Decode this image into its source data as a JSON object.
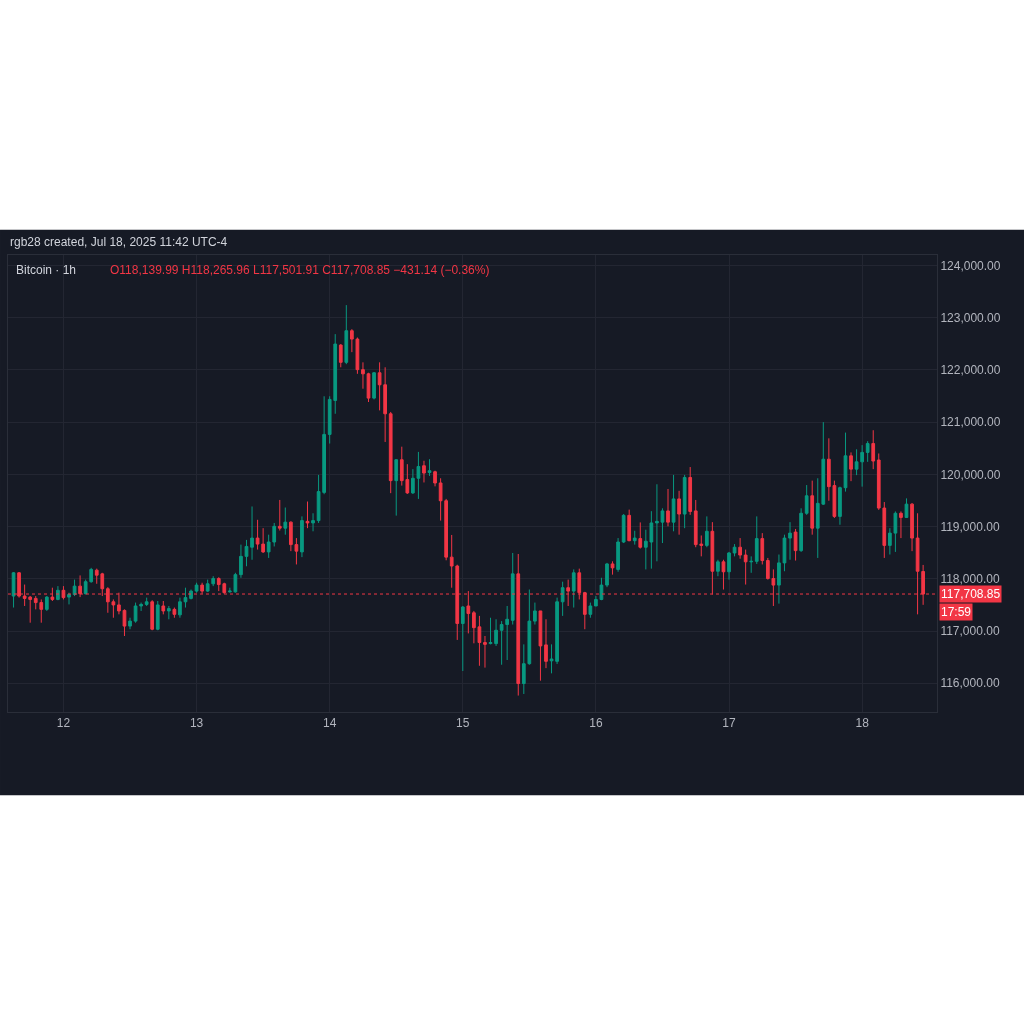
{
  "chart_data": {
    "type": "candlestick",
    "title": "rgb28 created, Jul 18, 2025 11:42 UTC-4",
    "subtitle": "Bitcoin · 1h",
    "annotations": [
      "O118,139.99 H118,265.96 L117,501.91 C117,708.85 −431.14 (−0.36%)",
      "17:59"
    ],
    "x": [
      "2025-07-11T15:00",
      "2025-07-11T16:00",
      "2025-07-11T17:00",
      "2025-07-11T18:00",
      "2025-07-11T19:00",
      "2025-07-11T20:00",
      "2025-07-11T21:00",
      "2025-07-11T22:00",
      "2025-07-11T23:00",
      "2025-07-12T00:00",
      "2025-07-12T01:00",
      "2025-07-12T02:00",
      "2025-07-12T03:00",
      "2025-07-12T04:00",
      "2025-07-12T05:00",
      "2025-07-12T06:00",
      "2025-07-12T07:00",
      "2025-07-12T08:00",
      "2025-07-12T09:00",
      "2025-07-12T10:00",
      "2025-07-12T11:00",
      "2025-07-12T12:00",
      "2025-07-12T13:00",
      "2025-07-12T14:00",
      "2025-07-12T15:00",
      "2025-07-12T16:00",
      "2025-07-12T17:00",
      "2025-07-12T18:00",
      "2025-07-12T19:00",
      "2025-07-12T20:00",
      "2025-07-12T21:00",
      "2025-07-12T22:00",
      "2025-07-12T23:00",
      "2025-07-13T00:00",
      "2025-07-13T01:00",
      "2025-07-13T02:00",
      "2025-07-13T03:00",
      "2025-07-13T04:00",
      "2025-07-13T05:00",
      "2025-07-13T06:00",
      "2025-07-13T07:00",
      "2025-07-13T08:00",
      "2025-07-13T09:00",
      "2025-07-13T10:00",
      "2025-07-13T11:00",
      "2025-07-13T12:00",
      "2025-07-13T13:00",
      "2025-07-13T14:00",
      "2025-07-13T15:00",
      "2025-07-13T16:00",
      "2025-07-13T17:00",
      "2025-07-13T18:00",
      "2025-07-13T19:00",
      "2025-07-13T20:00",
      "2025-07-13T21:00",
      "2025-07-13T22:00",
      "2025-07-13T23:00",
      "2025-07-14T00:00",
      "2025-07-14T01:00",
      "2025-07-14T02:00",
      "2025-07-14T03:00",
      "2025-07-14T04:00",
      "2025-07-14T05:00",
      "2025-07-14T06:00",
      "2025-07-14T07:00",
      "2025-07-14T08:00",
      "2025-07-14T09:00",
      "2025-07-14T10:00",
      "2025-07-14T11:00",
      "2025-07-14T12:00",
      "2025-07-14T13:00",
      "2025-07-14T14:00",
      "2025-07-14T15:00",
      "2025-07-14T16:00",
      "2025-07-14T17:00",
      "2025-07-14T18:00",
      "2025-07-14T19:00",
      "2025-07-14T20:00",
      "2025-07-14T21:00",
      "2025-07-14T22:00",
      "2025-07-14T23:00",
      "2025-07-15T00:00",
      "2025-07-15T01:00",
      "2025-07-15T02:00",
      "2025-07-15T03:00",
      "2025-07-15T04:00",
      "2025-07-15T05:00",
      "2025-07-15T06:00",
      "2025-07-15T07:00",
      "2025-07-15T08:00",
      "2025-07-15T09:00",
      "2025-07-15T10:00",
      "2025-07-15T11:00",
      "2025-07-15T12:00",
      "2025-07-15T13:00",
      "2025-07-15T14:00",
      "2025-07-15T15:00",
      "2025-07-15T16:00",
      "2025-07-15T17:00",
      "2025-07-15T18:00",
      "2025-07-15T19:00",
      "2025-07-15T20:00",
      "2025-07-15T21:00",
      "2025-07-15T22:00",
      "2025-07-15T23:00",
      "2025-07-16T00:00",
      "2025-07-16T01:00",
      "2025-07-16T02:00",
      "2025-07-16T03:00",
      "2025-07-16T04:00",
      "2025-07-16T05:00",
      "2025-07-16T06:00",
      "2025-07-16T07:00",
      "2025-07-16T08:00",
      "2025-07-16T09:00",
      "2025-07-16T10:00",
      "2025-07-16T11:00",
      "2025-07-16T12:00",
      "2025-07-16T13:00",
      "2025-07-16T14:00",
      "2025-07-16T15:00",
      "2025-07-16T16:00",
      "2025-07-16T17:00",
      "2025-07-16T18:00",
      "2025-07-16T19:00",
      "2025-07-16T20:00",
      "2025-07-16T21:00",
      "2025-07-16T22:00",
      "2025-07-16T23:00",
      "2025-07-17T00:00",
      "2025-07-17T01:00",
      "2025-07-17T02:00",
      "2025-07-17T03:00",
      "2025-07-17T04:00",
      "2025-07-17T05:00",
      "2025-07-17T06:00",
      "2025-07-17T07:00",
      "2025-07-17T08:00",
      "2025-07-17T09:00",
      "2025-07-17T10:00",
      "2025-07-17T11:00",
      "2025-07-17T12:00",
      "2025-07-17T13:00",
      "2025-07-17T14:00",
      "2025-07-17T15:00",
      "2025-07-17T16:00",
      "2025-07-17T17:00",
      "2025-07-17T18:00",
      "2025-07-17T19:00",
      "2025-07-17T20:00",
      "2025-07-17T21:00",
      "2025-07-17T22:00",
      "2025-07-17T23:00",
      "2025-07-18T00:00",
      "2025-07-18T01:00",
      "2025-07-18T02:00",
      "2025-07-18T03:00",
      "2025-07-18T04:00",
      "2025-07-18T05:00",
      "2025-07-18T06:00",
      "2025-07-18T07:00",
      "2025-07-18T08:00",
      "2025-07-18T09:00",
      "2025-07-18T10:00",
      "2025-07-18T11:00"
    ],
    "ohlc": [
      [
        117670,
        118130,
        117450,
        118115
      ],
      [
        118115,
        118130,
        117640,
        117670
      ],
      [
        117670,
        117890,
        117480,
        117625
      ],
      [
        117650,
        117670,
        117160,
        117605
      ],
      [
        117625,
        117670,
        117415,
        117545
      ],
      [
        117545,
        117605,
        117160,
        117415
      ],
      [
        117415,
        117670,
        117385,
        117650
      ],
      [
        117650,
        117830,
        117575,
        117605
      ],
      [
        117605,
        117860,
        117590,
        117780
      ],
      [
        117780,
        117860,
        117605,
        117640
      ],
      [
        117650,
        117735,
        117510,
        117700
      ],
      [
        117700,
        117985,
        117670,
        117860
      ],
      [
        117860,
        118065,
        117650,
        117715
      ],
      [
        117715,
        117985,
        117700,
        117945
      ],
      [
        117945,
        118210,
        117925,
        118180
      ],
      [
        118165,
        118195,
        117905,
        118070
      ],
      [
        118095,
        118115,
        117670,
        117810
      ],
      [
        117810,
        117840,
        117350,
        117560
      ],
      [
        117560,
        117605,
        117255,
        117500
      ],
      [
        117500,
        117735,
        117320,
        117385
      ],
      [
        117395,
        117415,
        116905,
        117095
      ],
      [
        117095,
        117255,
        117035,
        117190
      ],
      [
        117190,
        117545,
        117160,
        117480
      ],
      [
        117480,
        117545,
        117385,
        117510
      ],
      [
        117510,
        117640,
        117480,
        117560
      ],
      [
        117560,
        117590,
        117015,
        117035
      ],
      [
        117035,
        117575,
        117015,
        117500
      ],
      [
        117480,
        117575,
        117320,
        117385
      ],
      [
        117385,
        117480,
        117225,
        117430
      ],
      [
        117415,
        117450,
        117255,
        117320
      ],
      [
        117310,
        117640,
        117255,
        117560
      ],
      [
        117560,
        117830,
        117450,
        117640
      ],
      [
        117625,
        117795,
        117605,
        117765
      ],
      [
        117765,
        117925,
        117735,
        117880
      ],
      [
        117880,
        117925,
        117715,
        117765
      ],
      [
        117765,
        117985,
        117750,
        117905
      ],
      [
        117905,
        118050,
        117860,
        118005
      ],
      [
        118005,
        118030,
        117765,
        117890
      ],
      [
        117905,
        117925,
        117715,
        117735
      ],
      [
        117750,
        117830,
        117735,
        117765
      ],
      [
        117750,
        118115,
        117735,
        118080
      ],
      [
        118080,
        118655,
        118020,
        118430
      ],
      [
        118430,
        118745,
        118240,
        118620
      ],
      [
        118605,
        119385,
        118365,
        118780
      ],
      [
        118780,
        119130,
        118560,
        118665
      ],
      [
        118665,
        118970,
        118495,
        118515
      ],
      [
        118515,
        118845,
        118400,
        118705
      ],
      [
        118705,
        119070,
        118620,
        119005
      ],
      [
        119005,
        119510,
        118925,
        118970
      ],
      [
        118970,
        119365,
        118845,
        119085
      ],
      [
        119085,
        119100,
        118530,
        118655
      ],
      [
        118655,
        118780,
        118275,
        118530
      ],
      [
        118515,
        119195,
        118415,
        119115
      ],
      [
        119100,
        119480,
        118970,
        119070
      ],
      [
        119070,
        119255,
        118910,
        119115
      ],
      [
        119115,
        119990,
        119070,
        119670
      ],
      [
        119655,
        121495,
        119620,
        120765
      ],
      [
        120765,
        121495,
        120590,
        121435
      ],
      [
        121415,
        122685,
        121160,
        122495
      ],
      [
        122475,
        122495,
        122050,
        122145
      ],
      [
        122145,
        123240,
        122110,
        122750
      ],
      [
        122750,
        122780,
        122340,
        122590
      ],
      [
        122590,
        122620,
        121925,
        122005
      ],
      [
        122005,
        122145,
        121640,
        121925
      ],
      [
        121925,
        121945,
        121385,
        121460
      ],
      [
        121460,
        121960,
        121435,
        121945
      ],
      [
        121945,
        122145,
        121225,
        121715
      ],
      [
        121715,
        122050,
        120620,
        121160
      ],
      [
        121160,
        121195,
        119640,
        119880
      ],
      [
        119880,
        120290,
        119210,
        120280
      ],
      [
        120280,
        120530,
        119785,
        119880
      ],
      [
        119900,
        120195,
        119625,
        119645
      ],
      [
        119645,
        120100,
        119625,
        119925
      ],
      [
        119925,
        120430,
        119530,
        120150
      ],
      [
        120165,
        120260,
        119845,
        120025
      ],
      [
        120035,
        120290,
        119970,
        120070
      ],
      [
        120050,
        120070,
        119770,
        119835
      ],
      [
        119835,
        119925,
        119115,
        119495
      ],
      [
        119495,
        119530,
        118355,
        118415
      ],
      [
        118415,
        118840,
        117830,
        118245
      ],
      [
        118245,
        118270,
        116830,
        117145
      ],
      [
        117145,
        117480,
        116235,
        117460
      ],
      [
        117480,
        117765,
        116955,
        117335
      ],
      [
        117350,
        117385,
        116765,
        117065
      ],
      [
        117080,
        117290,
        116335,
        116780
      ],
      [
        116780,
        116905,
        116300,
        116745
      ],
      [
        116760,
        117255,
        116745,
        116780
      ],
      [
        116760,
        117225,
        116715,
        117015
      ],
      [
        117015,
        117190,
        116355,
        117125
      ],
      [
        117125,
        117480,
        116445,
        117225
      ],
      [
        117205,
        118495,
        117125,
        118095
      ],
      [
        118095,
        118475,
        115765,
        115995
      ],
      [
        115995,
        116745,
        115795,
        116375
      ],
      [
        116375,
        117795,
        116355,
        117190
      ],
      [
        117190,
        117545,
        117125,
        117385
      ],
      [
        117385,
        117385,
        116050,
        116715
      ],
      [
        116735,
        117225,
        116290,
        116420
      ],
      [
        116430,
        116745,
        116190,
        116465
      ],
      [
        116420,
        117640,
        116370,
        117560
      ],
      [
        117560,
        117945,
        117290,
        117830
      ],
      [
        117830,
        117985,
        117480,
        117765
      ],
      [
        117765,
        118180,
        117450,
        118115
      ],
      [
        118115,
        118195,
        117605,
        117735
      ],
      [
        117735,
        117750,
        117035,
        117320
      ],
      [
        117320,
        117545,
        117255,
        117480
      ],
      [
        117480,
        117670,
        117480,
        117605
      ],
      [
        117605,
        118020,
        117590,
        117880
      ],
      [
        117880,
        118305,
        117840,
        118285
      ],
      [
        118285,
        118335,
        118080,
        118210
      ],
      [
        118180,
        118780,
        118135,
        118705
      ],
      [
        118705,
        119240,
        118685,
        119215
      ],
      [
        119215,
        119325,
        118720,
        118730
      ],
      [
        118730,
        118920,
        118655,
        118780
      ],
      [
        118770,
        119080,
        118580,
        118605
      ],
      [
        118605,
        118940,
        118180,
        118720
      ],
      [
        118705,
        119295,
        118195,
        119070
      ],
      [
        119070,
        119810,
        118335,
        119100
      ],
      [
        119085,
        119350,
        118685,
        119300
      ],
      [
        119300,
        119720,
        119005,
        119085
      ],
      [
        119085,
        119990,
        118910,
        119530
      ],
      [
        119530,
        119685,
        118845,
        119240
      ],
      [
        119240,
        119990,
        118970,
        119940
      ],
      [
        119940,
        120140,
        119225,
        119290
      ],
      [
        119300,
        119510,
        118605,
        118655
      ],
      [
        118665,
        118830,
        118430,
        118640
      ],
      [
        118640,
        119195,
        118605,
        118910
      ],
      [
        118910,
        119085,
        117700,
        118145
      ],
      [
        118145,
        118365,
        118050,
        118325
      ],
      [
        118325,
        118365,
        117795,
        118135
      ],
      [
        118135,
        118515,
        117985,
        118495
      ],
      [
        118495,
        118665,
        118430,
        118605
      ],
      [
        118605,
        118780,
        118385,
        118455
      ],
      [
        118455,
        118560,
        117890,
        118325
      ],
      [
        118325,
        118430,
        118115,
        118335
      ],
      [
        118335,
        119195,
        118285,
        118770
      ],
      [
        118770,
        118875,
        118275,
        118350
      ],
      [
        118350,
        118400,
        117985,
        118005
      ],
      [
        118005,
        118180,
        117480,
        117880
      ],
      [
        117880,
        118465,
        117525,
        118305
      ],
      [
        118305,
        118845,
        118145,
        118780
      ],
      [
        118780,
        119085,
        118365,
        118875
      ],
      [
        118895,
        118955,
        118350,
        118540
      ],
      [
        118540,
        119350,
        118515,
        119255
      ],
      [
        119255,
        119795,
        119225,
        119590
      ],
      [
        119590,
        119880,
        118845,
        118970
      ],
      [
        118970,
        119925,
        118400,
        119445
      ],
      [
        119430,
        121000,
        119415,
        120290
      ],
      [
        120290,
        120690,
        119495,
        119765
      ],
      [
        119785,
        119880,
        119165,
        119195
      ],
      [
        119195,
        119765,
        119035,
        119745
      ],
      [
        119745,
        120800,
        119670,
        120355
      ],
      [
        120355,
        120420,
        119870,
        120100
      ],
      [
        120100,
        120480,
        119985,
        120240
      ],
      [
        120240,
        120560,
        119765,
        120420
      ],
      [
        120420,
        120635,
        120240,
        120590
      ],
      [
        120590,
        120845,
        120100,
        120255
      ],
      [
        120275,
        120400,
        119320,
        119355
      ],
      [
        119355,
        119470,
        118400,
        118640
      ],
      [
        118640,
        118970,
        118465,
        118875
      ],
      [
        118875,
        119290,
        118515,
        119255
      ],
      [
        119255,
        119290,
        118780,
        119175
      ],
      [
        119175,
        119540,
        119165,
        119430
      ],
      [
        119430,
        119450,
        118530,
        118780
      ],
      [
        118780,
        119255,
        117320,
        118145
      ],
      [
        118139.99,
        118265.96,
        117501.91,
        117708.85
      ]
    ],
    "colors": [
      "#089981",
      "#f23645",
      "#f23645",
      "#f23645",
      "#f23645",
      "#f23645",
      "#089981",
      "#f23645",
      "#089981",
      "#f23645",
      "#089981",
      "#089981",
      "#f23645",
      "#089981",
      "#089981",
      "#f23645",
      "#f23645",
      "#f23645",
      "#f23645",
      "#f23645",
      "#f23645",
      "#089981",
      "#089981",
      "#089981",
      "#089981",
      "#f23645",
      "#089981",
      "#f23645",
      "#089981",
      "#f23645",
      "#089981",
      "#089981",
      "#089981",
      "#089981",
      "#f23645",
      "#089981",
      "#089981",
      "#f23645",
      "#f23645",
      "#089981",
      "#089981",
      "#089981",
      "#089981",
      "#089981",
      "#f23645",
      "#f23645",
      "#089981",
      "#089981",
      "#f23645",
      "#089981",
      "#f23645",
      "#f23645",
      "#089981",
      "#f23645",
      "#089981",
      "#089981",
      "#089981",
      "#089981",
      "#089981",
      "#f23645",
      "#089981",
      "#f23645",
      "#f23645",
      "#f23645",
      "#f23645",
      "#089981",
      "#f23645",
      "#f23645",
      "#f23645",
      "#089981",
      "#f23645",
      "#f23645",
      "#089981",
      "#089981",
      "#f23645",
      "#089981",
      "#f23645",
      "#f23645",
      "#f23645",
      "#f23645",
      "#f23645",
      "#089981",
      "#f23645",
      "#f23645",
      "#f23645",
      "#f23645",
      "#089981",
      "#089981",
      "#089981",
      "#089981",
      "#089981",
      "#f23645",
      "#089981",
      "#089981",
      "#089981",
      "#f23645",
      "#f23645",
      "#089981",
      "#089981",
      "#089981",
      "#f23645",
      "#089981",
      "#f23645",
      "#f23645",
      "#089981",
      "#089981",
      "#089981",
      "#089981",
      "#f23645",
      "#089981",
      "#089981",
      "#f23645",
      "#089981",
      "#f23645",
      "#089981",
      "#089981",
      "#089981",
      "#089981",
      "#f23645",
      "#089981",
      "#f23645",
      "#089981",
      "#f23645",
      "#f23645",
      "#f23645",
      "#089981",
      "#f23645",
      "#089981",
      "#f23645",
      "#089981",
      "#089981",
      "#f23645",
      "#f23645",
      "#089981",
      "#089981",
      "#f23645",
      "#f23645",
      "#f23645",
      "#089981",
      "#089981",
      "#089981",
      "#f23645",
      "#089981",
      "#089981",
      "#f23645",
      "#089981",
      "#089981",
      "#f23645",
      "#f23645",
      "#089981",
      "#089981",
      "#f23645",
      "#089981",
      "#089981",
      "#089981",
      "#f23645",
      "#f23645",
      "#f23645",
      "#089981",
      "#089981",
      "#f23645",
      "#089981",
      "#f23645",
      "#f23645",
      "#f23645"
    ],
    "xlim": [
      "2025-07-11T14:00",
      "2025-07-18T13:30"
    ],
    "xticks": [
      {
        "value": "2025-07-12",
        "label": "12"
      },
      {
        "value": "2025-07-13",
        "label": "13"
      },
      {
        "value": "2025-07-14",
        "label": "14"
      },
      {
        "value": "2025-07-15",
        "label": "15"
      },
      {
        "value": "2025-07-16",
        "label": "16"
      },
      {
        "value": "2025-07-17",
        "label": "17"
      },
      {
        "value": "2025-07-18",
        "label": "18"
      }
    ],
    "ylim": [
      115450,
      124200
    ],
    "yticks": [
      {
        "value": 116000,
        "label": "116,000.00"
      },
      {
        "value": 117000,
        "label": "117,000.00"
      },
      {
        "value": 118000,
        "label": "118,000.00"
      },
      {
        "value": 119000,
        "label": "119,000.00"
      },
      {
        "value": 120000,
        "label": "120,000.00"
      },
      {
        "value": 121000,
        "label": "121,000.00"
      },
      {
        "value": 122000,
        "label": "122,000.00"
      },
      {
        "value": 123000,
        "label": "123,000.00"
      },
      {
        "value": 124000,
        "label": "124,000.00"
      }
    ],
    "ref_lines": [
      {
        "axis": "y",
        "value": 117708.85,
        "label": "117,708.85",
        "color": "#f23645",
        "line_style": "dotted"
      }
    ],
    "grid": true
  }
}
